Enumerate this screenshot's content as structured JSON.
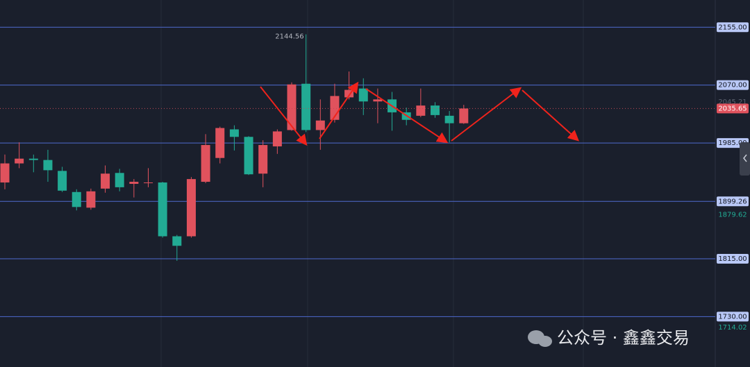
{
  "chart_data": {
    "type": "candlestick",
    "open": [
      1927,
      1955,
      1962,
      1960,
      1944,
      1913,
      1890,
      1918,
      1941,
      1925,
      1926,
      1927,
      1848,
      1848,
      1928,
      1963,
      2005,
      1994,
      1940,
      1980,
      2004,
      2072,
      2004,
      2019,
      2052,
      2065,
      2046,
      2049,
      2030,
      2025,
      2040,
      2025,
      2014
    ],
    "high": [
      1968,
      1986,
      1968,
      1975,
      1950,
      1917,
      1918,
      1952,
      1947,
      1932,
      1948,
      1928,
      1850,
      1935,
      1998,
      2009,
      2011,
      1995,
      1989,
      2005,
      2074,
      2144.56,
      2049,
      2072,
      2090,
      2080,
      2065,
      2060,
      2037,
      2065,
      2045,
      2032,
      2041
    ],
    "low": [
      1917,
      1948,
      1942,
      1928,
      1913,
      1886,
      1887,
      1912,
      1914,
      1905,
      1920,
      1846,
      1812,
      1846,
      1926,
      1955,
      1974,
      1938,
      1920,
      1969,
      2003,
      2001,
      1975,
      2015,
      2049,
      2026,
      2014,
      2003,
      2011,
      2023,
      2022,
      1986,
      2013
    ],
    "close": [
      1955,
      1962,
      1960,
      1945,
      1915,
      1891,
      1914,
      1940,
      1920,
      1928,
      1927,
      1848,
      1834,
      1932,
      1982,
      2007,
      1994,
      1939,
      1982,
      2002,
      2071,
      2004,
      2018,
      2054,
      2063,
      2046,
      2049,
      2030,
      2019,
      2040,
      2026,
      2014,
      2035.65
    ],
    "up_color": "#e0525d",
    "down_color": "#22ab94",
    "ylim": [
      1656,
      2195
    ],
    "yticks": [
      {
        "value": 2155,
        "label": "2155.00"
      },
      {
        "value": 2070,
        "label": "2070.00"
      },
      {
        "value": 1985,
        "label": "1985.00"
      },
      1899.26,
      {
        "value": 1815,
        "label": "1815.00"
      },
      {
        "value": 1730,
        "label": "1730.00"
      }
    ],
    "high_annotation": 2144.56,
    "last_price": 2035.65,
    "faded_price_labels": [
      2045.21
    ],
    "green_price_labels": [
      1879.62,
      1714.02
    ],
    "watermark": "公众号 · 鑫鑫交易"
  }
}
